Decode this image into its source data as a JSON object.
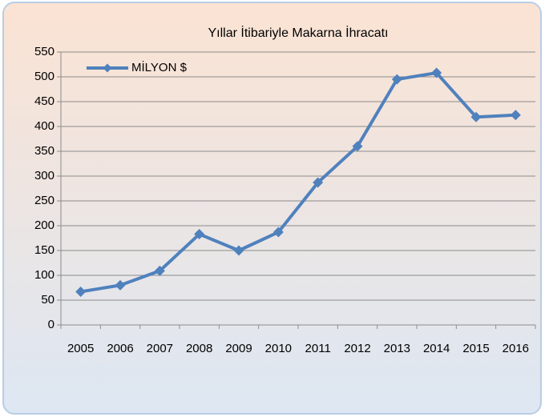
{
  "chart_data": {
    "type": "line",
    "title": "Yıllar İtibariyle Makarna İhracatı",
    "categories": [
      "2005",
      "2006",
      "2007",
      "2008",
      "2009",
      "2010",
      "2011",
      "2012",
      "2013",
      "2014",
      "2015",
      "2016"
    ],
    "series": [
      {
        "name": "MİLYON $",
        "color": "#4f81bd",
        "values": [
          67,
          80,
          109,
          183,
          150,
          187,
          287,
          360,
          495,
          508,
          419,
          423
        ]
      }
    ],
    "ylim": [
      0,
      550
    ],
    "yticks": [
      0,
      50,
      100,
      150,
      200,
      250,
      300,
      350,
      400,
      450,
      500,
      550
    ],
    "grid": true,
    "legend": "top-left"
  }
}
